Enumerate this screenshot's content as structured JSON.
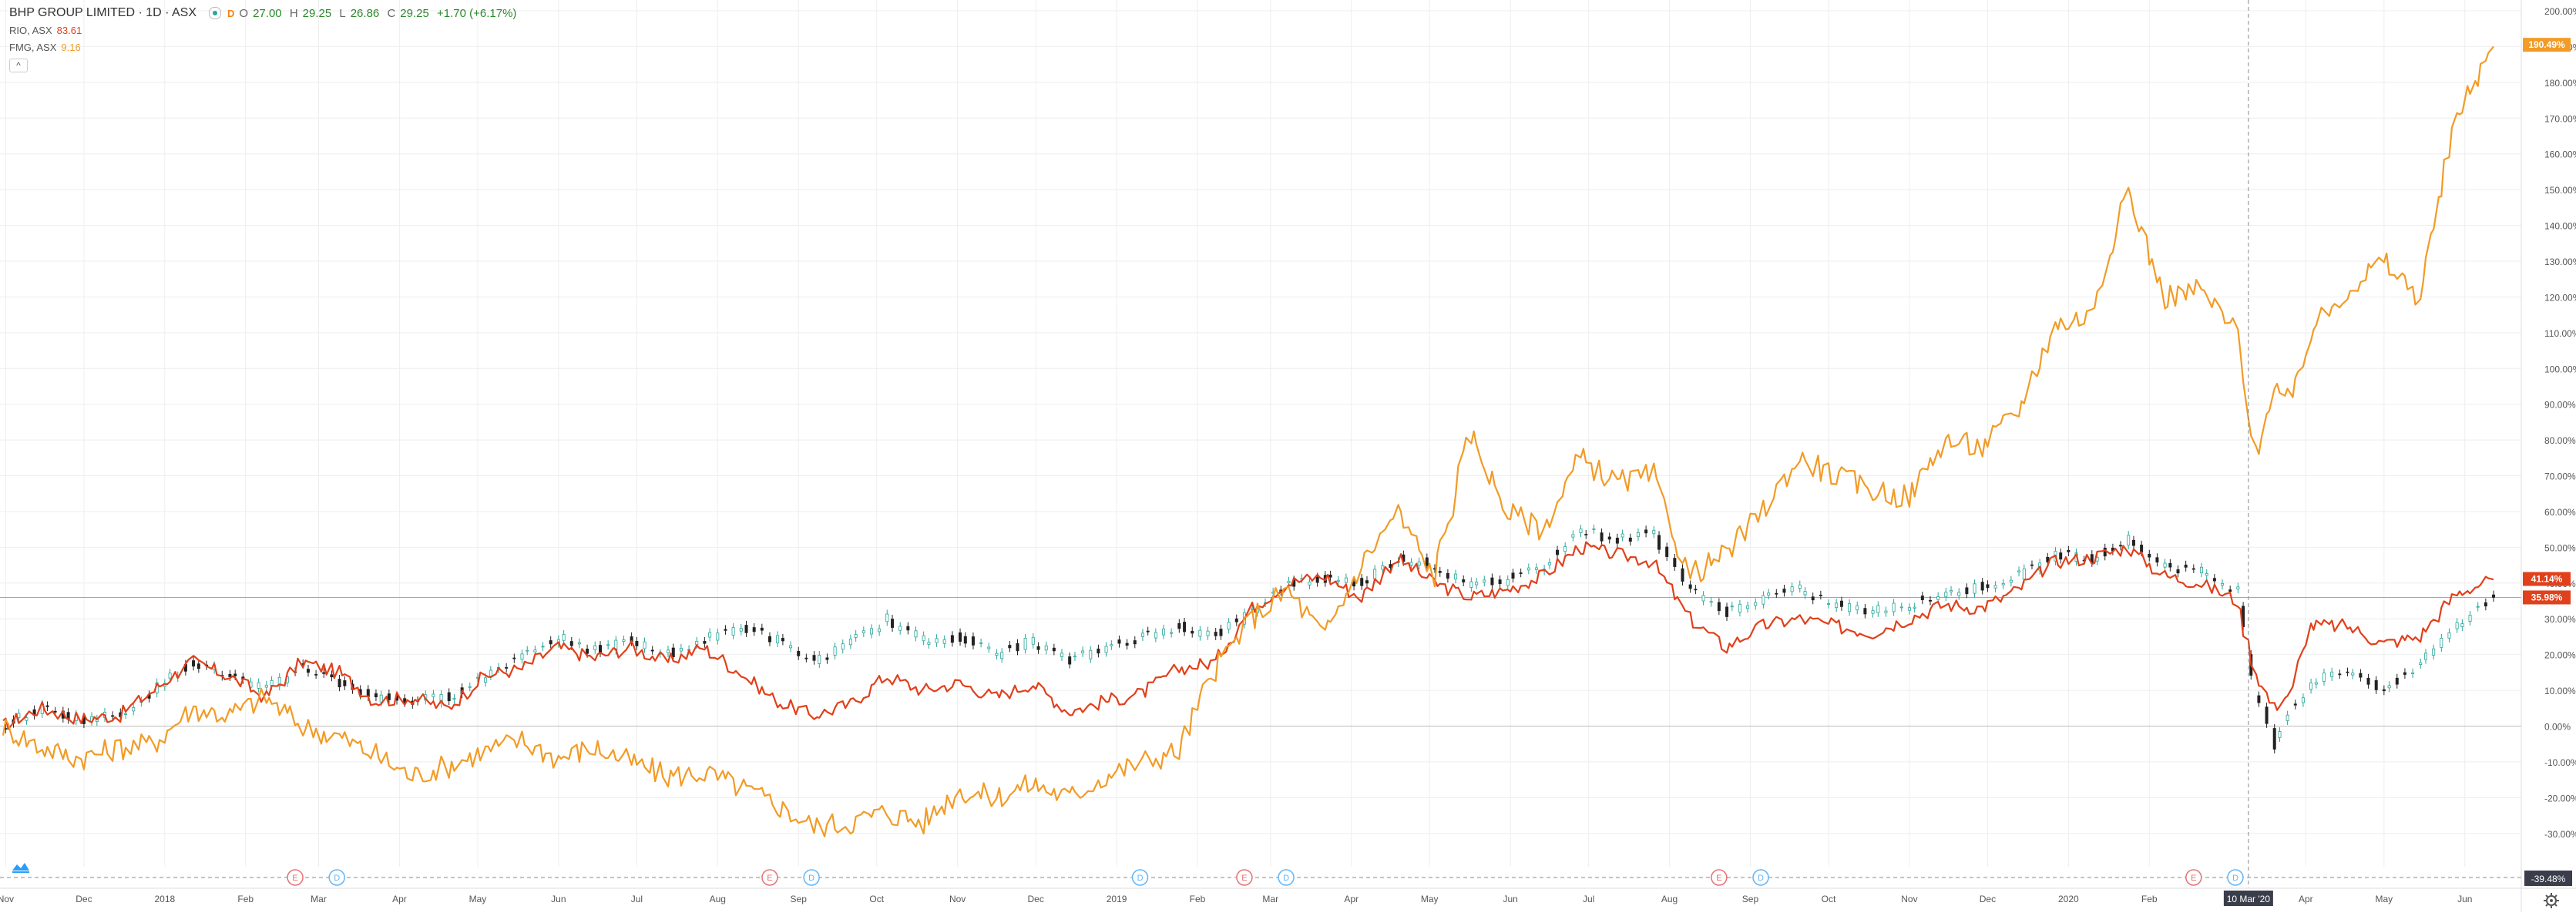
{
  "header": {
    "title": "BHP GROUP LIMITED · 1D · ASX",
    "interval_badge": "D",
    "ohlc": {
      "o_label": "O",
      "o": "27.00",
      "h_label": "H",
      "h": "29.25",
      "l_label": "L",
      "l": "26.86",
      "c_label": "C",
      "c": "29.25",
      "change": "+1.70 (+6.17%)"
    },
    "compare": [
      {
        "symbol": "RIO, ASX",
        "last": "83.61",
        "color": "#e0401b"
      },
      {
        "symbol": "FMG, ASX",
        "last": "9.16",
        "color": "#f29b26"
      }
    ],
    "collapse_glyph": "^"
  },
  "colors": {
    "rio": "#e0401b",
    "fmg": "#f29b26",
    "bhp_up": "#26a69a",
    "bhp_down": "#222222",
    "grid": "#eeeeee",
    "axis_text": "#555555"
  },
  "chart_data": {
    "type": "line",
    "y_axis_unit": "percent",
    "ylim": [
      -35,
      200
    ],
    "yticks": [
      "200.00%",
      "190.00%",
      "180.00%",
      "170.00%",
      "160.00%",
      "150.00%",
      "140.00%",
      "130.00%",
      "120.00%",
      "110.00%",
      "100.00%",
      "90.00%",
      "80.00%",
      "70.00%",
      "60.00%",
      "50.00%",
      "40.00%",
      "30.00%",
      "20.00%",
      "10.00%",
      "0.00%",
      "-10.00%",
      "-20.00%",
      "-30.00%"
    ],
    "xlim": [
      "2017-10-31",
      "2020-06-12"
    ],
    "x_ticks": [
      {
        "label": "Nov",
        "date": "2017-11-01"
      },
      {
        "label": "Dec",
        "date": "2017-12-01"
      },
      {
        "label": "2018",
        "date": "2018-01-01"
      },
      {
        "label": "Feb",
        "date": "2018-02-01"
      },
      {
        "label": "Mar",
        "date": "2018-03-01"
      },
      {
        "label": "Apr",
        "date": "2018-04-01"
      },
      {
        "label": "May",
        "date": "2018-05-01"
      },
      {
        "label": "Jun",
        "date": "2018-06-01"
      },
      {
        "label": "Jul",
        "date": "2018-07-01"
      },
      {
        "label": "Aug",
        "date": "2018-08-01"
      },
      {
        "label": "Sep",
        "date": "2018-09-01"
      },
      {
        "label": "Oct",
        "date": "2018-10-01"
      },
      {
        "label": "Nov",
        "date": "2018-11-01"
      },
      {
        "label": "Dec",
        "date": "2018-12-01"
      },
      {
        "label": "2019",
        "date": "2019-01-01"
      },
      {
        "label": "Feb",
        "date": "2019-02-01"
      },
      {
        "label": "Mar",
        "date": "2019-03-01"
      },
      {
        "label": "Apr",
        "date": "2019-04-01"
      },
      {
        "label": "May",
        "date": "2019-05-01"
      },
      {
        "label": "Jun",
        "date": "2019-06-01"
      },
      {
        "label": "Jul",
        "date": "2019-07-01"
      },
      {
        "label": "Aug",
        "date": "2019-08-01"
      },
      {
        "label": "Sep",
        "date": "2019-09-01"
      },
      {
        "label": "Oct",
        "date": "2019-10-01"
      },
      {
        "label": "Nov",
        "date": "2019-11-01"
      },
      {
        "label": "Dec",
        "date": "2019-12-01"
      },
      {
        "label": "2020",
        "date": "2020-01-01"
      },
      {
        "label": "Feb",
        "date": "2020-02-01"
      },
      {
        "label": "Apr",
        "date": "2020-04-01"
      },
      {
        "label": "May",
        "date": "2020-05-01"
      },
      {
        "label": "Jun",
        "date": "2020-06-01"
      }
    ],
    "crosshair": {
      "date_label": "10 Mar '20",
      "date": "2020-03-10",
      "value_label": "-39.48%"
    },
    "reference_line": {
      "value": 35.98
    },
    "series": [
      {
        "name": "RIO, ASX",
        "style": "line",
        "color": "#e0401b",
        "last_label": "41.14%",
        "points": [
          [
            "2017-10-31",
            0
          ],
          [
            "2017-11-15",
            5
          ],
          [
            "2017-11-30",
            2
          ],
          [
            "2017-12-15",
            3
          ],
          [
            "2017-12-28",
            10
          ],
          [
            "2018-01-12",
            18
          ],
          [
            "2018-01-26",
            14
          ],
          [
            "2018-02-09",
            8
          ],
          [
            "2018-02-23",
            18
          ],
          [
            "2018-03-09",
            15
          ],
          [
            "2018-03-23",
            7
          ],
          [
            "2018-04-06",
            8
          ],
          [
            "2018-04-20",
            5
          ],
          [
            "2018-05-04",
            14
          ],
          [
            "2018-05-18",
            16
          ],
          [
            "2018-06-01",
            22
          ],
          [
            "2018-06-15",
            19
          ],
          [
            "2018-06-29",
            22
          ],
          [
            "2018-07-13",
            18
          ],
          [
            "2018-07-27",
            22
          ],
          [
            "2018-08-10",
            15
          ],
          [
            "2018-08-24",
            7
          ],
          [
            "2018-09-07",
            3
          ],
          [
            "2018-09-21",
            6
          ],
          [
            "2018-10-05",
            14
          ],
          [
            "2018-10-19",
            10
          ],
          [
            "2018-11-02",
            12
          ],
          [
            "2018-11-16",
            8
          ],
          [
            "2018-11-30",
            12
          ],
          [
            "2018-12-14",
            4
          ],
          [
            "2018-12-28",
            7
          ],
          [
            "2019-01-11",
            9
          ],
          [
            "2019-01-25",
            16
          ],
          [
            "2019-02-08",
            18
          ],
          [
            "2019-02-22",
            33
          ],
          [
            "2019-03-08",
            40
          ],
          [
            "2019-03-22",
            42
          ],
          [
            "2019-04-05",
            36
          ],
          [
            "2019-04-19",
            47
          ],
          [
            "2019-05-03",
            40
          ],
          [
            "2019-05-17",
            36
          ],
          [
            "2019-05-31",
            38
          ],
          [
            "2019-06-14",
            42
          ],
          [
            "2019-06-28",
            50
          ],
          [
            "2019-07-12",
            48
          ],
          [
            "2019-07-26",
            46
          ],
          [
            "2019-08-09",
            30
          ],
          [
            "2019-08-23",
            22
          ],
          [
            "2019-09-06",
            28
          ],
          [
            "2019-09-20",
            30
          ],
          [
            "2019-10-04",
            28
          ],
          [
            "2019-10-18",
            26
          ],
          [
            "2019-11-01",
            30
          ],
          [
            "2019-11-15",
            34
          ],
          [
            "2019-11-29",
            33
          ],
          [
            "2019-12-13",
            38
          ],
          [
            "2019-12-27",
            46
          ],
          [
            "2020-01-10",
            47
          ],
          [
            "2020-01-24",
            50
          ],
          [
            "2020-02-07",
            42
          ],
          [
            "2020-02-21",
            40
          ],
          [
            "2020-03-06",
            35
          ],
          [
            "2020-03-13",
            15
          ],
          [
            "2020-03-20",
            5
          ],
          [
            "2020-03-27",
            10
          ],
          [
            "2020-04-03",
            28
          ],
          [
            "2020-04-17",
            28
          ],
          [
            "2020-05-01",
            23
          ],
          [
            "2020-05-15",
            25
          ],
          [
            "2020-05-29",
            37
          ],
          [
            "2020-06-12",
            41
          ]
        ]
      },
      {
        "name": "FMG, ASX",
        "style": "line",
        "color": "#f29b26",
        "last_label": "190.49%",
        "points": [
          [
            "2017-10-31",
            0
          ],
          [
            "2017-11-15",
            -6
          ],
          [
            "2017-11-30",
            -9
          ],
          [
            "2017-12-15",
            -6
          ],
          [
            "2017-12-28",
            -5
          ],
          [
            "2018-01-12",
            5
          ],
          [
            "2018-01-26",
            3
          ],
          [
            "2018-02-09",
            8
          ],
          [
            "2018-02-23",
            0
          ],
          [
            "2018-03-09",
            -3
          ],
          [
            "2018-03-23",
            -8
          ],
          [
            "2018-04-06",
            -14
          ],
          [
            "2018-04-20",
            -11
          ],
          [
            "2018-05-04",
            -7
          ],
          [
            "2018-05-18",
            -4
          ],
          [
            "2018-06-01",
            -9
          ],
          [
            "2018-06-15",
            -6
          ],
          [
            "2018-06-29",
            -10
          ],
          [
            "2018-07-13",
            -14
          ],
          [
            "2018-07-27",
            -13
          ],
          [
            "2018-08-10",
            -17
          ],
          [
            "2018-08-24",
            -22
          ],
          [
            "2018-09-07",
            -28
          ],
          [
            "2018-09-21",
            -27
          ],
          [
            "2018-10-05",
            -24
          ],
          [
            "2018-10-19",
            -27
          ],
          [
            "2018-11-02",
            -18
          ],
          [
            "2018-11-16",
            -20
          ],
          [
            "2018-11-30",
            -16
          ],
          [
            "2018-12-14",
            -20
          ],
          [
            "2018-12-28",
            -14
          ],
          [
            "2019-01-11",
            -10
          ],
          [
            "2019-01-25",
            -7
          ],
          [
            "2019-02-08",
            16
          ],
          [
            "2019-02-22",
            30
          ],
          [
            "2019-03-08",
            38
          ],
          [
            "2019-03-22",
            25
          ],
          [
            "2019-04-05",
            45
          ],
          [
            "2019-04-19",
            60
          ],
          [
            "2019-05-03",
            42
          ],
          [
            "2019-05-17",
            82
          ],
          [
            "2019-05-31",
            60
          ],
          [
            "2019-06-14",
            55
          ],
          [
            "2019-06-28",
            75
          ],
          [
            "2019-07-12",
            68
          ],
          [
            "2019-07-26",
            70
          ],
          [
            "2019-08-09",
            42
          ],
          [
            "2019-08-23",
            48
          ],
          [
            "2019-09-06",
            60
          ],
          [
            "2019-09-20",
            75
          ],
          [
            "2019-10-04",
            70
          ],
          [
            "2019-10-18",
            66
          ],
          [
            "2019-11-01",
            64
          ],
          [
            "2019-11-15",
            80
          ],
          [
            "2019-11-29",
            78
          ],
          [
            "2019-12-13",
            88
          ],
          [
            "2019-12-27",
            112
          ],
          [
            "2020-01-10",
            115
          ],
          [
            "2020-01-24",
            150
          ],
          [
            "2020-02-07",
            120
          ],
          [
            "2020-02-21",
            122
          ],
          [
            "2020-03-06",
            110
          ],
          [
            "2020-03-13",
            75
          ],
          [
            "2020-03-20",
            95
          ],
          [
            "2020-03-27",
            90
          ],
          [
            "2020-04-03",
            110
          ],
          [
            "2020-04-17",
            122
          ],
          [
            "2020-05-01",
            130
          ],
          [
            "2020-05-15",
            120
          ],
          [
            "2020-05-29",
            170
          ],
          [
            "2020-06-12",
            190
          ]
        ]
      },
      {
        "name": "BHP GROUP LIMITED",
        "style": "candles",
        "last_label": "35.98%",
        "points": [
          [
            "2017-10-31",
            0
          ],
          [
            "2017-11-15",
            5
          ],
          [
            "2017-11-30",
            2
          ],
          [
            "2017-12-15",
            3
          ],
          [
            "2017-12-28",
            10
          ],
          [
            "2018-01-12",
            18
          ],
          [
            "2018-01-26",
            14
          ],
          [
            "2018-02-09",
            10
          ],
          [
            "2018-02-23",
            17
          ],
          [
            "2018-03-09",
            12
          ],
          [
            "2018-03-23",
            8
          ],
          [
            "2018-04-06",
            7
          ],
          [
            "2018-04-20",
            8
          ],
          [
            "2018-05-04",
            14
          ],
          [
            "2018-05-18",
            20
          ],
          [
            "2018-06-01",
            25
          ],
          [
            "2018-06-15",
            21
          ],
          [
            "2018-06-29",
            24
          ],
          [
            "2018-07-13",
            20
          ],
          [
            "2018-07-27",
            24
          ],
          [
            "2018-08-10",
            28
          ],
          [
            "2018-08-24",
            24
          ],
          [
            "2018-09-07",
            18
          ],
          [
            "2018-09-21",
            23
          ],
          [
            "2018-10-05",
            30
          ],
          [
            "2018-10-19",
            24
          ],
          [
            "2018-11-02",
            25
          ],
          [
            "2018-11-16",
            20
          ],
          [
            "2018-11-30",
            24
          ],
          [
            "2018-12-14",
            18
          ],
          [
            "2018-12-28",
            22
          ],
          [
            "2019-01-11",
            25
          ],
          [
            "2019-01-25",
            28
          ],
          [
            "2019-02-08",
            25
          ],
          [
            "2019-02-22",
            32
          ],
          [
            "2019-03-08",
            40
          ],
          [
            "2019-03-22",
            41
          ],
          [
            "2019-04-05",
            40
          ],
          [
            "2019-04-19",
            47
          ],
          [
            "2019-05-03",
            45
          ],
          [
            "2019-05-17",
            39
          ],
          [
            "2019-05-31",
            41
          ],
          [
            "2019-06-14",
            45
          ],
          [
            "2019-06-28",
            55
          ],
          [
            "2019-07-12",
            52
          ],
          [
            "2019-07-26",
            54
          ],
          [
            "2019-08-09",
            38
          ],
          [
            "2019-08-23",
            32
          ],
          [
            "2019-09-06",
            36
          ],
          [
            "2019-09-20",
            38
          ],
          [
            "2019-10-04",
            34
          ],
          [
            "2019-10-18",
            32
          ],
          [
            "2019-11-01",
            34
          ],
          [
            "2019-11-15",
            37
          ],
          [
            "2019-11-29",
            39
          ],
          [
            "2019-12-13",
            42
          ],
          [
            "2019-12-27",
            48
          ],
          [
            "2020-01-10",
            47
          ],
          [
            "2020-01-24",
            52
          ],
          [
            "2020-02-07",
            45
          ],
          [
            "2020-02-21",
            43
          ],
          [
            "2020-03-06",
            38
          ],
          [
            "2020-03-13",
            10
          ],
          [
            "2020-03-20",
            -5
          ],
          [
            "2020-03-27",
            5
          ],
          [
            "2020-04-03",
            12
          ],
          [
            "2020-04-17",
            16
          ],
          [
            "2020-05-01",
            10
          ],
          [
            "2020-05-15",
            18
          ],
          [
            "2020-05-29",
            28
          ],
          [
            "2020-06-12",
            36
          ]
        ]
      }
    ],
    "event_markers": [
      {
        "type": "E",
        "date": "2018-02-20"
      },
      {
        "type": "D",
        "date": "2018-03-08"
      },
      {
        "type": "E",
        "date": "2018-08-21"
      },
      {
        "type": "D",
        "date": "2018-09-06"
      },
      {
        "type": "D",
        "date": "2019-01-10"
      },
      {
        "type": "E",
        "date": "2019-02-19"
      },
      {
        "type": "D",
        "date": "2019-03-07"
      },
      {
        "type": "E",
        "date": "2019-08-20"
      },
      {
        "type": "D",
        "date": "2019-09-05"
      },
      {
        "type": "E",
        "date": "2020-02-18"
      },
      {
        "type": "D",
        "date": "2020-03-05"
      }
    ],
    "grid": true,
    "legend_position": "top-left"
  }
}
